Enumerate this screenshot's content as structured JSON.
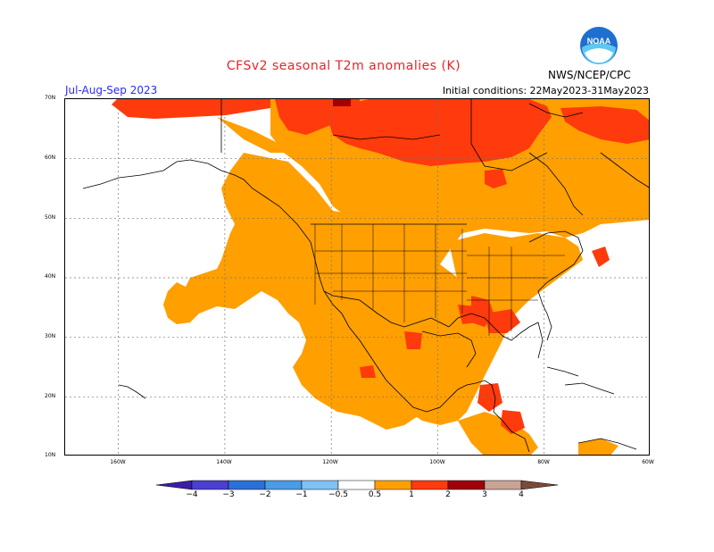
{
  "header": {
    "title": "CFSv2 seasonal T2m anomalies (K)",
    "season": "Jul-Aug-Sep 2023",
    "initial_conditions": "Initial conditions: 22May2023-31May2023",
    "organization": "NWS/NCEP/CPC",
    "logo_text": "NOAA"
  },
  "map": {
    "lat_labels": [
      "70N",
      "60N",
      "50N",
      "40N",
      "30N",
      "20N",
      "10N"
    ],
    "lon_labels": [
      "160W",
      "140W",
      "120W",
      "100W",
      "80W",
      "60W"
    ],
    "extent": {
      "lon": [
        -170,
        -60
      ],
      "lat": [
        10,
        70
      ]
    }
  },
  "colorbar": {
    "tick_labels": [
      "-4",
      "-3",
      "-2",
      "-1",
      "-0.5",
      "0.5",
      "1",
      "2",
      "3",
      "4"
    ],
    "colors": [
      "#3b1ea5",
      "#4a3fd0",
      "#2c6fd8",
      "#4b9be6",
      "#7fc1f2",
      "#ffffff",
      "#ff9f00",
      "#ff3a0c",
      "#a0000a",
      "#c8a494",
      "#7b4a3a"
    ],
    "legend": [
      {
        "range": "< -4",
        "color": "#3b1ea5"
      },
      {
        "range": "-4 to -3",
        "color": "#4a3fd0"
      },
      {
        "range": "-3 to -2",
        "color": "#2c6fd8"
      },
      {
        "range": "-2 to -1",
        "color": "#4b9be6"
      },
      {
        "range": "-1 to -0.5",
        "color": "#7fc1f2"
      },
      {
        "range": "-0.5 to 0.5",
        "color": "#ffffff"
      },
      {
        "range": "0.5 to 1",
        "color": "#ff9f00"
      },
      {
        "range": "1 to 2",
        "color": "#ff3a0c"
      },
      {
        "range": "2 to 3",
        "color": "#a0000a"
      },
      {
        "range": "3 to 4",
        "color": "#c8a494"
      },
      {
        "range": "> 4",
        "color": "#7b4a3a"
      }
    ]
  }
}
